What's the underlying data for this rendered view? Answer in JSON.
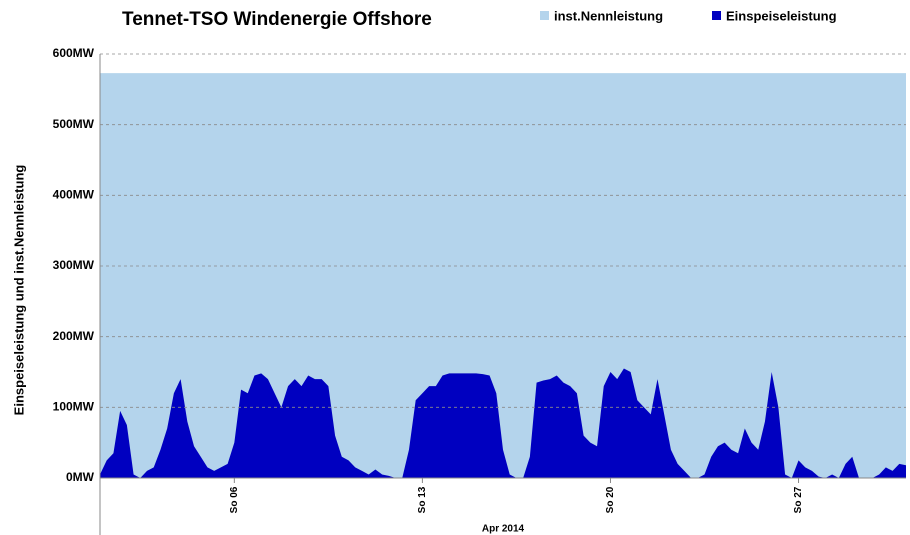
{
  "chart_data": {
    "type": "area",
    "title": "Tennet-TSO  Windenergie Offshore",
    "y_label": "Einspeiseleistung und inst.Nennleistung",
    "x_label": "Apr 2014",
    "x": [
      1,
      1.25,
      1.5,
      1.75,
      2,
      2.25,
      2.5,
      2.75,
      3,
      3.25,
      3.5,
      3.75,
      4,
      4.25,
      4.5,
      4.75,
      5,
      5.25,
      5.5,
      5.75,
      6,
      6.25,
      6.5,
      6.75,
      7,
      7.25,
      7.5,
      7.75,
      8,
      8.25,
      8.5,
      8.75,
      9,
      9.25,
      9.5,
      9.75,
      10,
      10.25,
      10.5,
      10.75,
      11,
      11.25,
      11.5,
      11.75,
      12,
      12.25,
      12.5,
      12.75,
      13,
      13.25,
      13.5,
      13.75,
      14,
      14.25,
      14.5,
      14.75,
      15,
      15.25,
      15.5,
      15.75,
      16,
      16.25,
      16.5,
      16.75,
      17,
      17.25,
      17.5,
      17.75,
      18,
      18.25,
      18.5,
      18.75,
      19,
      19.25,
      19.5,
      19.75,
      20,
      20.25,
      20.5,
      20.75,
      21,
      21.25,
      21.5,
      21.75,
      22,
      22.25,
      22.5,
      22.75,
      23,
      23.25,
      23.5,
      23.75,
      24,
      24.25,
      24.5,
      24.75,
      25,
      25.25,
      25.5,
      25.75,
      26,
      26.25,
      26.5,
      26.75,
      27,
      27.25,
      27.5,
      27.75,
      28,
      28.25,
      28.5,
      28.75,
      29,
      29.25,
      29.5,
      29.75,
      30,
      30.25,
      30.5,
      30.75,
      31
    ],
    "series": [
      {
        "name": "inst.Nennleistung",
        "color": "#b4d4ec",
        "values": [
          573,
          573,
          573,
          573,
          573,
          573,
          573,
          573,
          573,
          573,
          573,
          573,
          573,
          573,
          573,
          573,
          573,
          573,
          573,
          573,
          573,
          573,
          573,
          573,
          573,
          573,
          573,
          573,
          573,
          573,
          573,
          573,
          573,
          573,
          573,
          573,
          573,
          573,
          573,
          573,
          573,
          573,
          573,
          573,
          573,
          573,
          573,
          573,
          573,
          573,
          573,
          573,
          573,
          573,
          573,
          573,
          573,
          573,
          573,
          573,
          573,
          573,
          573,
          573,
          573,
          573,
          573,
          573,
          573,
          573,
          573,
          573,
          573,
          573,
          573,
          573,
          573,
          573,
          573,
          573,
          573,
          573,
          573,
          573,
          573,
          573,
          573,
          573,
          573,
          573,
          573,
          573,
          573,
          573,
          573,
          573,
          573,
          573,
          573,
          573,
          573,
          573,
          573,
          573,
          573,
          573,
          573,
          573,
          573,
          573,
          573,
          573,
          573,
          573,
          573,
          573,
          573,
          573,
          573,
          573,
          573
        ]
      },
      {
        "name": "Einspeiseleistung",
        "color": "#0000c0",
        "values": [
          5,
          25,
          35,
          95,
          75,
          5,
          0,
          10,
          15,
          40,
          70,
          120,
          140,
          80,
          45,
          30,
          15,
          10,
          15,
          20,
          50,
          125,
          120,
          145,
          148,
          140,
          120,
          100,
          130,
          140,
          130,
          145,
          140,
          140,
          130,
          60,
          30,
          25,
          15,
          10,
          5,
          12,
          5,
          3,
          0,
          0,
          40,
          110,
          120,
          130,
          130,
          145,
          148,
          148,
          148,
          148,
          148,
          147,
          145,
          120,
          40,
          5,
          0,
          0,
          30,
          135,
          138,
          140,
          145,
          135,
          130,
          120,
          60,
          50,
          45,
          130,
          150,
          140,
          155,
          150,
          110,
          100,
          90,
          140,
          90,
          40,
          20,
          10,
          0,
          0,
          5,
          30,
          45,
          50,
          40,
          35,
          70,
          50,
          40,
          80,
          150,
          100,
          5,
          0,
          25,
          15,
          10,
          2,
          0,
          5,
          0,
          20,
          30,
          0,
          0,
          0,
          5,
          15,
          10,
          20,
          18
        ]
      }
    ],
    "xlim": [
      1,
      31
    ],
    "xticks": [
      {
        "value": 6,
        "label": "So 06"
      },
      {
        "value": 13,
        "label": "So 13"
      },
      {
        "value": 20,
        "label": "So 20"
      },
      {
        "value": 27,
        "label": "So 27"
      }
    ],
    "ylim": [
      0,
      600
    ],
    "yticks": [
      {
        "value": 0,
        "label": "0MW"
      },
      {
        "value": 100,
        "label": "100MW"
      },
      {
        "value": 200,
        "label": "200MW"
      },
      {
        "value": 300,
        "label": "300MW"
      },
      {
        "value": 400,
        "label": "400MW"
      },
      {
        "value": 500,
        "label": "500MW"
      },
      {
        "value": 600,
        "label": "600MW"
      }
    ],
    "grid": true,
    "legend": "top"
  }
}
